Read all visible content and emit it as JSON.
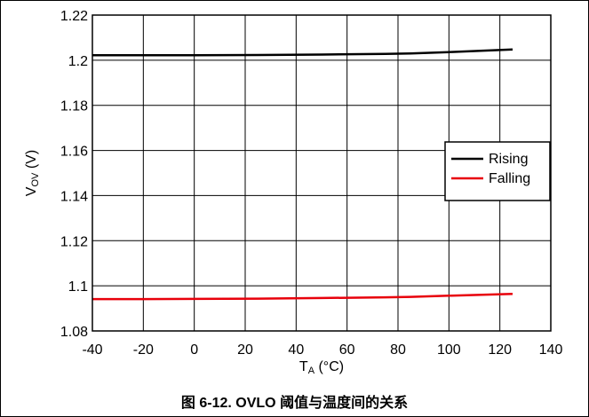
{
  "caption": "图 6-12. OVLO 阈值与温度间的关系",
  "chart_data": {
    "type": "line",
    "xlabel_main": "T",
    "xlabel_sub": "A",
    "xlabel_rest": " (°C)",
    "ylabel_main": "V",
    "ylabel_sub": "OV",
    "ylabel_rest": " (V)",
    "xlim": [
      -40,
      140
    ],
    "ylim": [
      1.08,
      1.22
    ],
    "xticks": [
      -40,
      -20,
      0,
      20,
      40,
      60,
      80,
      100,
      120,
      140
    ],
    "yticks": [
      1.08,
      1.1,
      1.12,
      1.14,
      1.16,
      1.18,
      1.2,
      1.22
    ],
    "xtick_labels": [
      "-40",
      "-20",
      "0",
      "20",
      "40",
      "60",
      "80",
      "100",
      "120",
      "140"
    ],
    "ytick_labels": [
      "1.08",
      "1.1",
      "1.12",
      "1.14",
      "1.16",
      "1.18",
      "1.2",
      "1.22"
    ],
    "grid": true,
    "legend_position": "right",
    "series": [
      {
        "name": "Rising",
        "color": "#000000",
        "x": [
          -40,
          -20,
          0,
          25,
          50,
          75,
          85,
          100,
          125
        ],
        "y": [
          1.2022,
          1.2022,
          1.2022,
          1.2023,
          1.2025,
          1.2028,
          1.203,
          1.2036,
          1.2048
        ]
      },
      {
        "name": "Falling",
        "color": "#e8000b",
        "x": [
          -40,
          -20,
          0,
          25,
          50,
          75,
          85,
          100,
          125
        ],
        "y": [
          1.0941,
          1.0941,
          1.0942,
          1.0943,
          1.0946,
          1.0949,
          1.0951,
          1.0956,
          1.0964
        ]
      }
    ]
  }
}
